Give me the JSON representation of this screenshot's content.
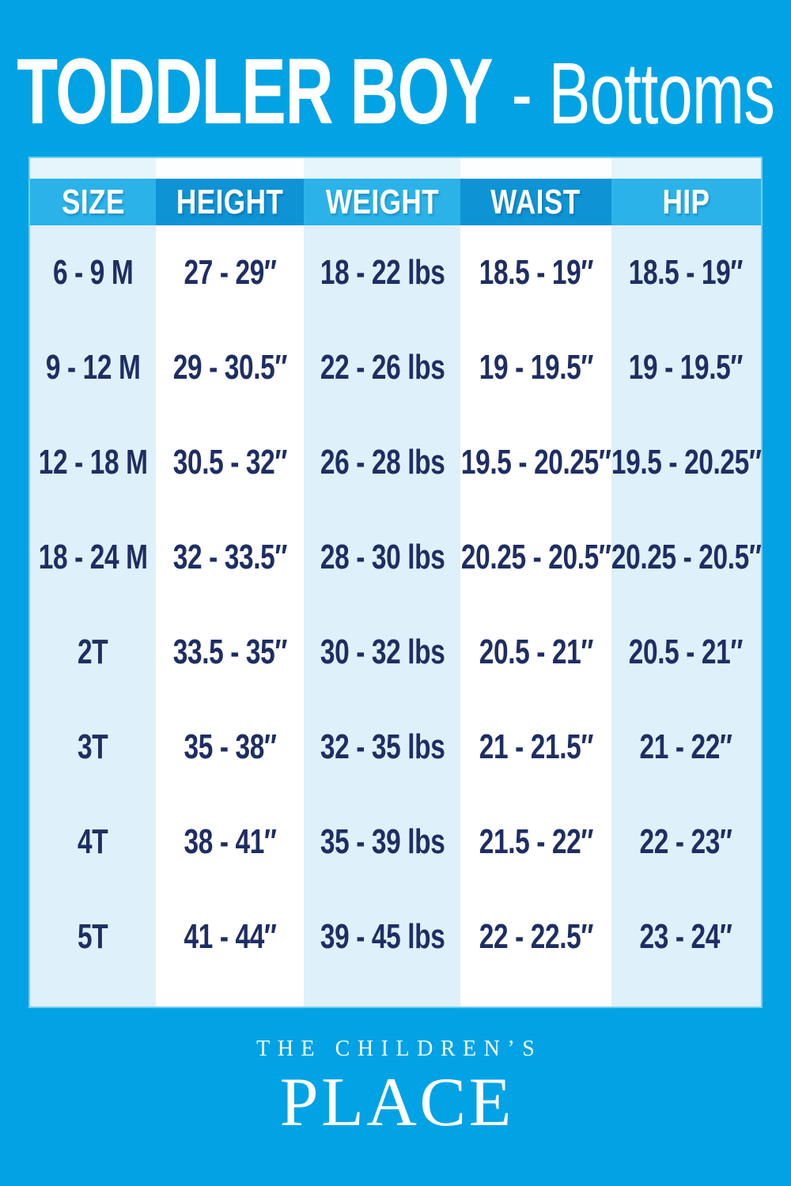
{
  "title": {
    "bold": "TODDLER BOY",
    "light": "- Bottoms"
  },
  "chart_data": {
    "type": "table",
    "title": "TODDLER BOY - Bottoms",
    "columns": [
      "SIZE",
      "HEIGHT",
      "WEIGHT",
      "WAIST",
      "HIP"
    ],
    "rows": [
      [
        "6 - 9 M",
        "27 - 29″",
        "18 - 22 lbs",
        "18.5 - 19″",
        "18.5 - 19″"
      ],
      [
        "9 - 12 M",
        "29 - 30.5″",
        "22 - 26 lbs",
        "19 - 19.5″",
        "19 - 19.5″"
      ],
      [
        "12 - 18 M",
        "30.5 - 32″",
        "26 - 28 lbs",
        "19.5 - 20.25″",
        "19.5 - 20.25″"
      ],
      [
        "18 - 24 M",
        "32 - 33.5″",
        "28 - 30 lbs",
        "20.25 - 20.5″",
        "20.25 - 20.5″"
      ],
      [
        "2T",
        "33.5 - 35″",
        "30 - 32 lbs",
        "20.5 - 21″",
        "20.5 - 21″"
      ],
      [
        "3T",
        "35 - 38″",
        "32 - 35 lbs",
        "21 - 21.5″",
        "21 - 22″"
      ],
      [
        "4T",
        "38 - 41″",
        "35 - 39 lbs",
        "21.5 - 22″",
        "22 - 23″"
      ],
      [
        "5T",
        "41 - 44″",
        "39 - 45 lbs",
        "22 - 22.5″",
        "23 - 24″"
      ]
    ],
    "layout": {
      "column_stripes": true,
      "gridlines": false
    }
  },
  "footer": {
    "brand_line1": "THE CHILDREN’S",
    "brand_line2": "PLACE"
  },
  "colors": {
    "background": "#01a3e4",
    "header_light": "#2bb3e9",
    "header_dark": "#0e93d5",
    "column_tint": "#def0fa",
    "column_white": "#ffffff",
    "text_navy": "#1e2e63",
    "text_white": "#ffffff"
  }
}
